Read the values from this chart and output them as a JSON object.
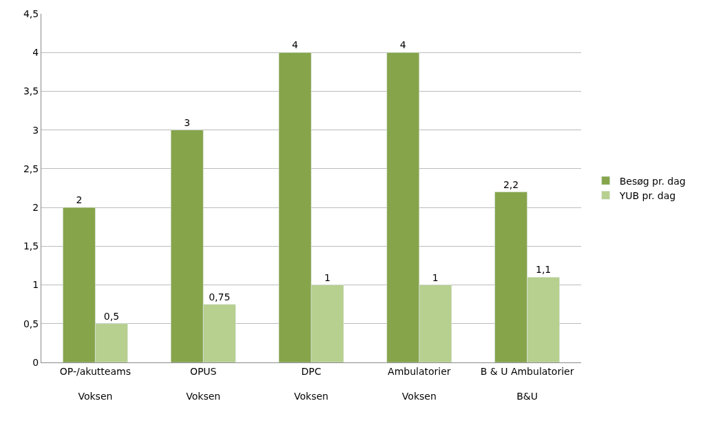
{
  "chart_data": {
    "type": "bar",
    "categories": [
      "OP-/akutteams\nVoksen",
      "OPUS\nVoksen",
      "DPC\nVoksen",
      "Ambulatorier\nVoksen",
      "B & U Ambulatorier\nB&U"
    ],
    "series": [
      {
        "name": "Besøg pr. dag",
        "color": "#86a44a",
        "values": [
          2,
          3,
          4,
          4,
          2.2
        ],
        "value_labels": [
          "2",
          "3",
          "4",
          "4",
          "2,2"
        ]
      },
      {
        "name": "YUB pr. dag",
        "color": "#b7cf8f",
        "values": [
          0.5,
          0.75,
          1,
          1,
          1.1
        ],
        "value_labels": [
          "0,5",
          "0,75",
          "1",
          "1",
          "1,1"
        ]
      }
    ],
    "ylim": [
      0,
      4.5
    ],
    "yticks": [
      0,
      {
        "value": 0.5,
        "label": "0,5"
      },
      1,
      {
        "value": 1.5,
        "label": "1,5"
      },
      2,
      {
        "value": 2.5,
        "label": "2,5"
      },
      3,
      {
        "value": 3.5,
        "label": "3,5"
      },
      4,
      {
        "value": 4.5,
        "label": "4,5"
      }
    ],
    "grid": "y",
    "legend": "right"
  }
}
